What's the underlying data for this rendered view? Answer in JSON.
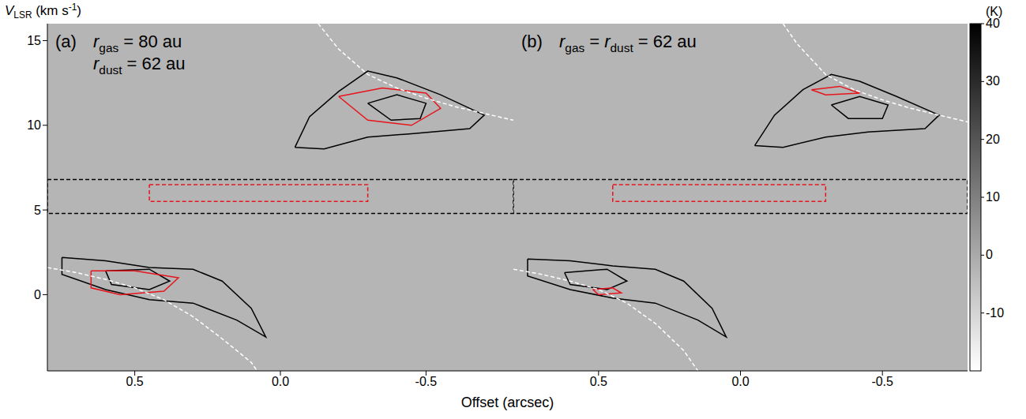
{
  "chart_data": {
    "type": "line",
    "xlabel": "Offset (arcsec)",
    "ylabel": [
      {
        "text": "V",
        "sub": "LSR"
      },
      {
        "text": " (km s",
        "sup": "-1"
      },
      {
        "text": ")"
      }
    ],
    "xlim": [
      -0.8,
      0.8
    ],
    "xticks": [
      {
        "value": 0.5,
        "label": "0.5"
      },
      {
        "value": 0,
        "label": "0.0"
      },
      {
        "value": -0.5,
        "label": "-0.5"
      }
    ],
    "ylim": [
      -4.5,
      16
    ],
    "yticks": [
      0,
      5,
      10,
      15
    ],
    "grid": false,
    "colorbar": {
      "label": "(K)",
      "range": [
        -20,
        40
      ],
      "ticks": [
        -10,
        0,
        10,
        20,
        30,
        40
      ]
    },
    "panels": [
      {
        "label": "(a)",
        "annotations": [
          [
            {
              "text": "r",
              "sub": "gas"
            },
            {
              "text": " = 80 au"
            }
          ],
          [
            {
              "text": "r",
              "sub": "dust"
            },
            {
              "text": " = 62 au"
            }
          ]
        ],
        "series": [
          {
            "color": "black",
            "line_style": "solid",
            "x": [
              -0.05,
              -0.1,
              -0.2,
              -0.3,
              -0.4,
              -0.55,
              -0.7,
              -0.65,
              -0.45,
              -0.3,
              -0.15,
              -0.05
            ],
            "values": [
              8.7,
              10.5,
              12.0,
              13.2,
              12.8,
              11.8,
              10.6,
              9.8,
              9.5,
              9.3,
              8.6,
              8.7
            ]
          },
          {
            "color": "black",
            "line_style": "solid",
            "x": [
              -0.3,
              -0.4,
              -0.5,
              -0.48,
              -0.38,
              -0.3
            ],
            "values": [
              11.3,
              11.8,
              11.3,
              10.4,
              10.3,
              11.3
            ]
          },
          {
            "color": "black",
            "line_style": "solid",
            "x": [
              0.75,
              0.6,
              0.45,
              0.3,
              0.2,
              0.1,
              0.05,
              0.15,
              0.3,
              0.45,
              0.6,
              0.75,
              0.75
            ],
            "values": [
              2.2,
              2.0,
              1.6,
              1.5,
              0.8,
              -0.8,
              -2.5,
              -1.5,
              -0.5,
              -0.3,
              0.3,
              1.2,
              2.2
            ]
          },
          {
            "color": "black",
            "line_style": "solid",
            "x": [
              0.6,
              0.45,
              0.38,
              0.45,
              0.58,
              0.6
            ],
            "values": [
              1.4,
              1.5,
              0.8,
              0.3,
              0.6,
              1.4
            ]
          },
          {
            "color": "black",
            "line_style": "dashed",
            "x": [
              0.8,
              -0.8,
              -0.8,
              0.8,
              0.8
            ],
            "values": [
              6.8,
              6.8,
              4.8,
              4.8,
              6.8
            ]
          },
          {
            "color": "#e8141c",
            "line_style": "dashed",
            "x": [
              0.45,
              -0.3,
              -0.3,
              0.45,
              0.45
            ],
            "values": [
              6.5,
              6.5,
              5.5,
              5.5,
              6.5
            ]
          },
          {
            "color": "#e8141c",
            "line_style": "solid",
            "x": [
              -0.2,
              -0.35,
              -0.5,
              -0.55,
              -0.45,
              -0.3,
              -0.2
            ],
            "values": [
              11.7,
              12.2,
              11.9,
              11.0,
              10.0,
              10.3,
              11.7
            ]
          },
          {
            "color": "#e8141c",
            "line_style": "solid",
            "x": [
              0.65,
              0.5,
              0.35,
              0.4,
              0.55,
              0.65,
              0.65
            ],
            "values": [
              1.4,
              1.4,
              1.0,
              0.2,
              0.0,
              0.4,
              1.4
            ]
          },
          {
            "color": "white",
            "line_style": "dashed",
            "x": [
              -0.13,
              -0.2,
              -0.3,
              -0.4,
              -0.5,
              -0.6,
              -0.7,
              -0.8
            ],
            "values": [
              16,
              14.5,
              13,
              12.2,
              11.6,
              11.1,
              10.7,
              10.3
            ]
          },
          {
            "color": "white",
            "line_style": "dashed",
            "x": [
              0.8,
              0.7,
              0.6,
              0.5,
              0.4,
              0.3,
              0.2,
              0.1,
              0.08
            ],
            "values": [
              1.6,
              1.3,
              0.9,
              0.4,
              -0.3,
              -1.3,
              -2.6,
              -4.0,
              -4.5
            ]
          }
        ]
      },
      {
        "label": "(b)",
        "annotations": [
          [
            {
              "text": "r",
              "sub": "gas"
            },
            {
              "text": " = "
            },
            {
              "text": "r",
              "sub": "dust"
            },
            {
              "text": " = 62 au"
            }
          ]
        ],
        "series": [
          {
            "color": "black",
            "line_style": "solid",
            "x": [
              -0.05,
              -0.12,
              -0.22,
              -0.32,
              -0.42,
              -0.55,
              -0.7,
              -0.65,
              -0.45,
              -0.3,
              -0.15,
              -0.05
            ],
            "values": [
              8.8,
              10.6,
              12.1,
              13.0,
              12.6,
              11.7,
              10.6,
              9.8,
              9.6,
              9.3,
              8.7,
              8.8
            ]
          },
          {
            "color": "black",
            "line_style": "solid",
            "x": [
              -0.32,
              -0.42,
              -0.52,
              -0.5,
              -0.38,
              -0.32
            ],
            "values": [
              11.2,
              11.7,
              11.2,
              10.4,
              10.4,
              11.2
            ]
          },
          {
            "color": "black",
            "line_style": "solid",
            "x": [
              0.75,
              0.6,
              0.45,
              0.3,
              0.2,
              0.1,
              0.05,
              0.15,
              0.3,
              0.45,
              0.6,
              0.75,
              0.75
            ],
            "values": [
              2.1,
              2.0,
              1.7,
              1.5,
              0.8,
              -0.8,
              -2.5,
              -1.5,
              -0.5,
              -0.2,
              0.3,
              1.1,
              2.1
            ]
          },
          {
            "color": "black",
            "line_style": "solid",
            "x": [
              0.62,
              0.47,
              0.4,
              0.47,
              0.6,
              0.62
            ],
            "values": [
              1.3,
              1.5,
              0.8,
              0.3,
              0.6,
              1.3
            ]
          },
          {
            "color": "black",
            "line_style": "dashed",
            "x": [
              0.8,
              -0.8,
              -0.8,
              0.8,
              0.8
            ],
            "values": [
              6.8,
              6.8,
              4.8,
              4.8,
              6.8
            ]
          },
          {
            "color": "#e8141c",
            "line_style": "dashed",
            "x": [
              0.45,
              -0.3,
              -0.3,
              0.45,
              0.45
            ],
            "values": [
              6.5,
              6.5,
              5.5,
              5.5,
              6.5
            ]
          },
          {
            "color": "#e8141c",
            "line_style": "solid",
            "x": [
              -0.25,
              -0.35,
              -0.42,
              -0.3,
              -0.25
            ],
            "values": [
              12.1,
              12.3,
              11.9,
              11.8,
              12.1
            ]
          },
          {
            "color": "#e8141c",
            "line_style": "solid",
            "x": [
              0.52,
              0.45,
              0.42,
              0.5,
              0.52
            ],
            "values": [
              0.3,
              0.4,
              0.1,
              0.0,
              0.3
            ]
          },
          {
            "color": "white",
            "line_style": "dashed",
            "x": [
              -0.15,
              -0.2,
              -0.3,
              -0.4,
              -0.5,
              -0.6,
              -0.7,
              -0.8
            ],
            "values": [
              16,
              14.8,
              13,
              12.1,
              11.5,
              11.0,
              10.6,
              10.2
            ]
          },
          {
            "color": "white",
            "line_style": "dashed",
            "x": [
              0.8,
              0.7,
              0.6,
              0.5,
              0.4,
              0.3,
              0.2,
              0.15
            ],
            "values": [
              1.5,
              1.2,
              0.8,
              0.3,
              -0.5,
              -1.7,
              -3.3,
              -4.5
            ]
          }
        ]
      }
    ]
  }
}
